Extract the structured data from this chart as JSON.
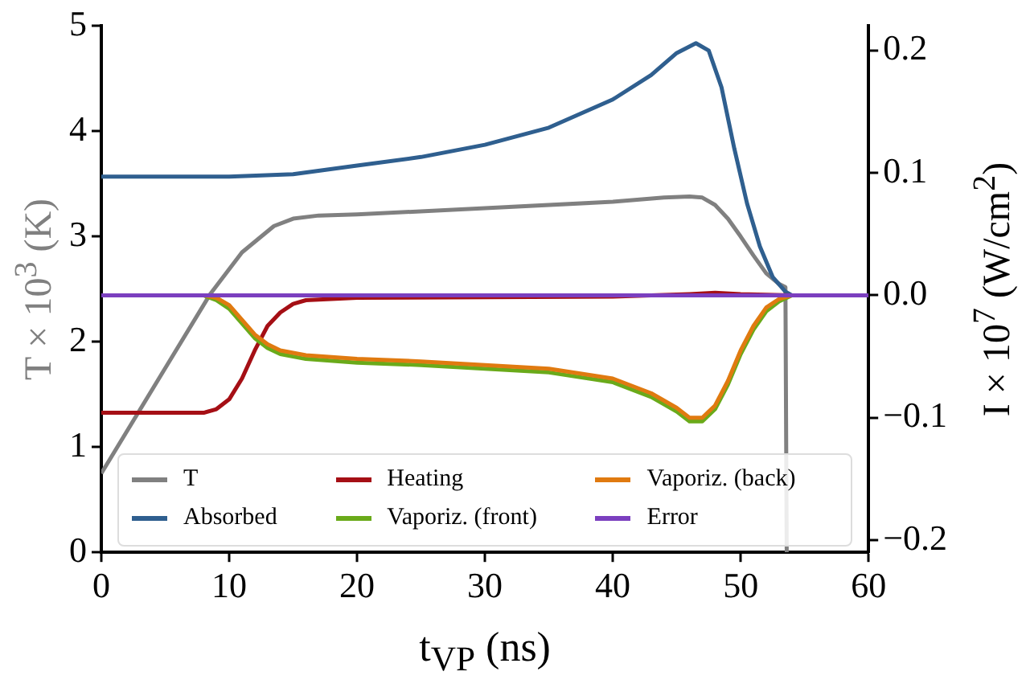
{
  "chart_data": {
    "type": "line",
    "xlabel": "t$_{VP}$  (ns)",
    "ylabel": "T × 10$^{3}$ (K)",
    "y2label": "I × 10$^{7}$ (W/cm$^{2}$)",
    "xlim": [
      0,
      60
    ],
    "xticks": [
      0,
      10,
      20,
      30,
      40,
      50,
      60
    ],
    "ylim": [
      0,
      5
    ],
    "yticks": [
      0,
      1,
      2,
      3,
      4,
      5
    ],
    "y2lim": [
      -0.21,
      0.22
    ],
    "y2ticks": [
      {
        "value": -0.2,
        "label": "−0.2"
      },
      {
        "value": -0.1,
        "label": "−0.1"
      },
      {
        "value": 0,
        "label": "0.0"
      },
      {
        "value": 0.1,
        "label": "0.1"
      },
      0.2
    ],
    "grid": false,
    "legend": "bottom",
    "marker": "none",
    "line_style": "solid",
    "series": [
      {
        "name": "T",
        "color": "#808080",
        "x": [
          0,
          5,
          8.5,
          11,
          12.2,
          13.5,
          15,
          17,
          20,
          30,
          40,
          44,
          46,
          47,
          48,
          49,
          50,
          51,
          52,
          53,
          53.5,
          53.6
        ],
        "values": [
          0.75,
          1.75,
          2.45,
          2.85,
          2.97,
          3.1,
          3.17,
          3.2,
          3.21,
          3.27,
          3.33,
          3.37,
          3.38,
          3.37,
          3.3,
          3.17,
          3,
          2.82,
          2.65,
          2.55,
          2.52,
          0
        ]
      },
      {
        "name": "Absorbed",
        "color": "#2f5f8f",
        "axis": "y2",
        "x": [
          0,
          10,
          15,
          20,
          25,
          30,
          35,
          40,
          43,
          45,
          46.5,
          47.5,
          48.5,
          49.5,
          50.5,
          51.5,
          52.5,
          53.5,
          54,
          60
        ],
        "values": [
          0.097,
          0.097,
          0.099,
          0.106,
          0.113,
          0.123,
          0.137,
          0.16,
          0.18,
          0.198,
          0.206,
          0.2,
          0.17,
          0.12,
          0.075,
          0.04,
          0.015,
          0.003,
          0,
          0
        ]
      },
      {
        "name": "Heating",
        "color": "#a50f15",
        "axis": "y2",
        "x": [
          0,
          8,
          9,
          10,
          11,
          12,
          13,
          14,
          15,
          16,
          20,
          40,
          46,
          48,
          50,
          54,
          60
        ],
        "values": [
          -0.096,
          -0.096,
          -0.093,
          -0.085,
          -0.068,
          -0.045,
          -0.025,
          -0.014,
          -0.007,
          -0.004,
          -0.002,
          -0.001,
          0.001,
          0.002,
          0.001,
          0,
          0
        ]
      },
      {
        "name": "Vaporiz. (front)",
        "color": "#6aaa1a",
        "axis": "y2",
        "x": [
          0,
          8,
          9,
          10,
          11,
          12,
          13,
          14,
          16,
          20,
          25,
          30,
          35,
          40,
          43,
          45,
          46,
          47,
          48,
          49,
          50,
          51,
          52,
          53,
          54,
          60
        ],
        "values": [
          0,
          0,
          -0.004,
          -0.011,
          -0.023,
          -0.035,
          -0.043,
          -0.048,
          -0.052,
          -0.055,
          -0.057,
          -0.06,
          -0.063,
          -0.071,
          -0.083,
          -0.095,
          -0.103,
          -0.103,
          -0.093,
          -0.073,
          -0.048,
          -0.028,
          -0.013,
          -0.005,
          0,
          0
        ]
      },
      {
        "name": "Vaporiz. (back)",
        "color": "#e07a10",
        "axis": "y2",
        "x": [
          0,
          8,
          9,
          10,
          11,
          12,
          13,
          14,
          16,
          20,
          25,
          30,
          35,
          40,
          43,
          45,
          46,
          47,
          48,
          49,
          50,
          51,
          52,
          53,
          54,
          60
        ],
        "values": [
          0,
          0,
          -0.002,
          -0.008,
          -0.02,
          -0.032,
          -0.04,
          -0.045,
          -0.049,
          -0.052,
          -0.054,
          -0.057,
          -0.06,
          -0.068,
          -0.08,
          -0.092,
          -0.1,
          -0.1,
          -0.09,
          -0.07,
          -0.045,
          -0.025,
          -0.01,
          -0.003,
          0,
          0
        ]
      },
      {
        "name": "Error",
        "color": "#7b3fbf",
        "axis": "y2",
        "x": [
          0,
          60
        ],
        "values": [
          0,
          0
        ]
      }
    ]
  }
}
